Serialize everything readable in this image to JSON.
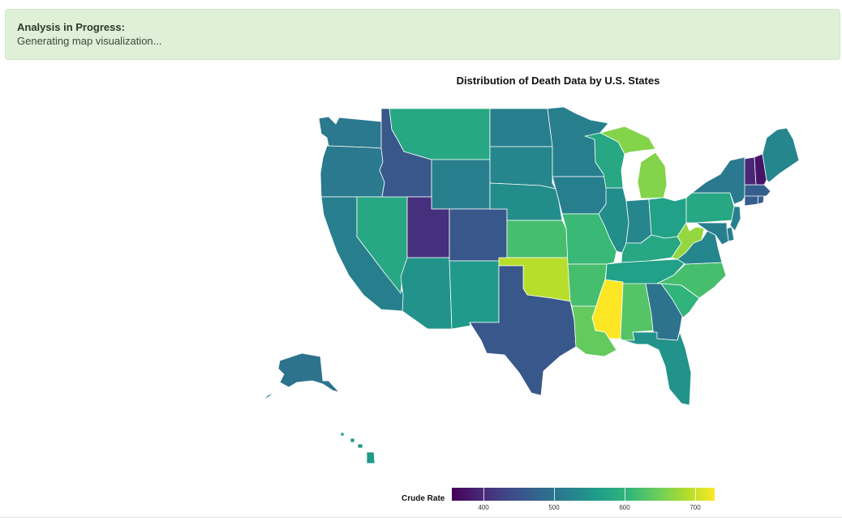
{
  "alert": {
    "title": "Analysis in Progress:",
    "message": "Generating map visualization..."
  },
  "map": {
    "title": "Distribution of Death Data by U.S. States",
    "legend_title": "Crude Rate",
    "legend_ticks": [
      "400",
      "500",
      "600",
      "700"
    ],
    "color_scale": "viridis",
    "scale_range": [
      360,
      730
    ]
  },
  "chart_data": {
    "type": "choropleth",
    "title": "Distribution of Death Data by U.S. States",
    "legend": "Crude Rate",
    "values": {
      "WA": 510,
      "OR": 510,
      "CA": 520,
      "NV": 580,
      "ID": 460,
      "MT": 580,
      "WY": 520,
      "UT": 410,
      "AZ": 550,
      "CO": 460,
      "NM": 560,
      "ND": 520,
      "SD": 530,
      "NE": 540,
      "KS": 620,
      "OK": 690,
      "TX": 460,
      "MN": 520,
      "IA": 520,
      "MO": 610,
      "AR": 620,
      "LA": 640,
      "WI": 580,
      "IL": 540,
      "MS": 730,
      "MI": 660,
      "IN": 530,
      "OH": 570,
      "KY": 580,
      "TN": 570,
      "AL": 630,
      "GA": 500,
      "FL": 550,
      "SC": 600,
      "NC": 620,
      "VA": 530,
      "WV": 670,
      "PA": 580,
      "NY": 510,
      "NJ": 520,
      "DE": 520,
      "MD": 520,
      "CT": 470,
      "RI": 470,
      "MA": 470,
      "VT": 400,
      "NH": 380,
      "ME": 530,
      "AK": 500,
      "HI": 560
    }
  }
}
